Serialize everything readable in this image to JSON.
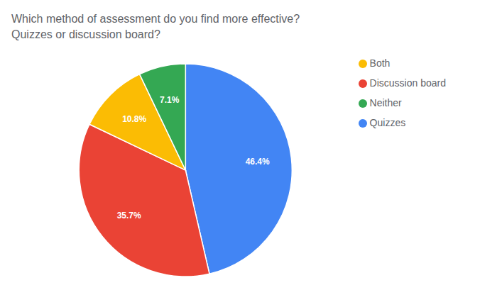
{
  "chart_data": {
    "type": "pie",
    "title": "Which method of assessment do you find more effective?\nQuizzes or discussion board?",
    "categories": [
      "Quizzes",
      "Discussion board",
      "Both",
      "Neither"
    ],
    "values": [
      46.4,
      35.7,
      10.8,
      7.1
    ],
    "value_labels": [
      "46.4%",
      "35.7%",
      "10.8%",
      "7.1%"
    ],
    "colors": [
      "#4285F4",
      "#EA4335",
      "#FBBC04",
      "#34A853"
    ],
    "data_labels": true,
    "legend": "upper right"
  }
}
